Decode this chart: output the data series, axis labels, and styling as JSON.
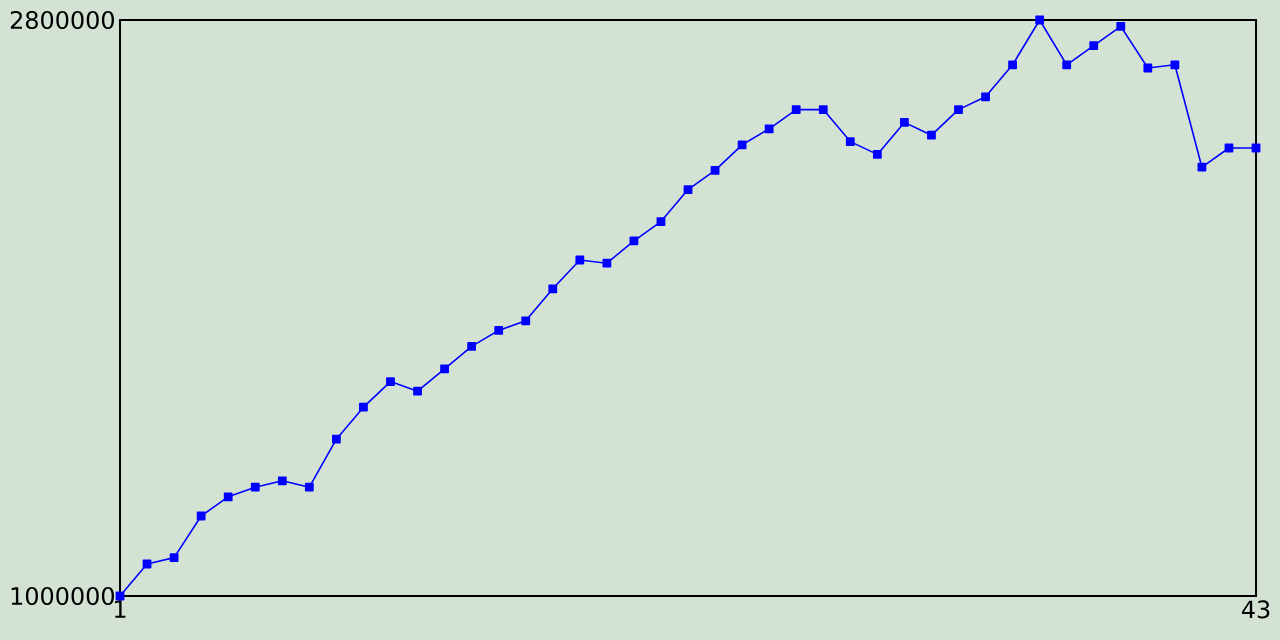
{
  "chart_data": {
    "type": "line",
    "x": [
      1,
      2,
      3,
      4,
      5,
      6,
      7,
      8,
      9,
      10,
      11,
      12,
      13,
      14,
      15,
      16,
      17,
      18,
      19,
      20,
      21,
      22,
      23,
      24,
      25,
      26,
      27,
      28,
      29,
      30,
      31,
      32,
      33,
      34,
      35,
      36,
      37,
      38,
      39,
      40,
      41,
      42,
      43
    ],
    "series": [
      {
        "color": "#0000ff",
        "values": [
          1000000,
          1100000,
          1120000,
          1250000,
          1310000,
          1340000,
          1360000,
          1340000,
          1490000,
          1590000,
          1670000,
          1640000,
          1710000,
          1780000,
          1830000,
          1860000,
          1960000,
          2050000,
          2040000,
          2110000,
          2170000,
          2270000,
          2330000,
          2410000,
          2460000,
          2520000,
          2520000,
          2420000,
          2380000,
          2480000,
          2440000,
          2520000,
          2560000,
          2660000,
          2800000,
          2660000,
          2720000,
          2780000,
          2650000,
          2660000,
          2340000,
          2400000,
          2400000
        ]
      }
    ],
    "xlim": [
      1,
      43
    ],
    "ylim": [
      1000000,
      2800000
    ],
    "xticks": [
      1,
      43
    ],
    "yticks": [
      1000000,
      2800000
    ],
    "marker": "square",
    "line_style": "solid"
  }
}
